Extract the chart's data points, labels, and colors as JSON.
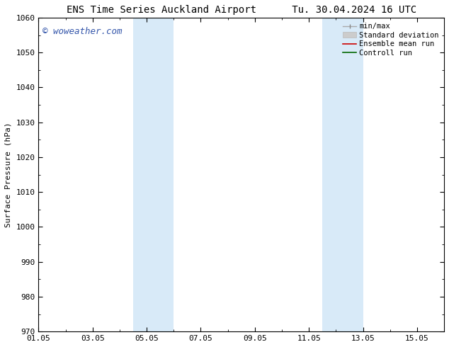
{
  "title_left": "ENS Time Series Auckland Airport",
  "title_right": "Tu. 30.04.2024 16 UTC",
  "ylabel": "Surface Pressure (hPa)",
  "ylim": [
    970,
    1060
  ],
  "yticks": [
    970,
    980,
    990,
    1000,
    1010,
    1020,
    1030,
    1040,
    1050,
    1060
  ],
  "xlim": [
    0,
    15
  ],
  "xtick_labels": [
    "01.05",
    "03.05",
    "05.05",
    "07.05",
    "09.05",
    "11.05",
    "13.05",
    "15.05"
  ],
  "xtick_positions": [
    0,
    2,
    4,
    6,
    8,
    10,
    12,
    14
  ],
  "shaded_bands": [
    {
      "x_start": 3.5,
      "x_end": 5.0
    },
    {
      "x_start": 10.5,
      "x_end": 12.0
    }
  ],
  "shaded_color": "#d8eaf8",
  "watermark_text": "© woweather.com",
  "watermark_color": "#3355aa",
  "background_color": "#ffffff",
  "plot_bg_color": "#ffffff",
  "title_fontsize": 10,
  "label_fontsize": 8,
  "tick_fontsize": 8,
  "watermark_fontsize": 9,
  "legend_fontsize": 7.5
}
